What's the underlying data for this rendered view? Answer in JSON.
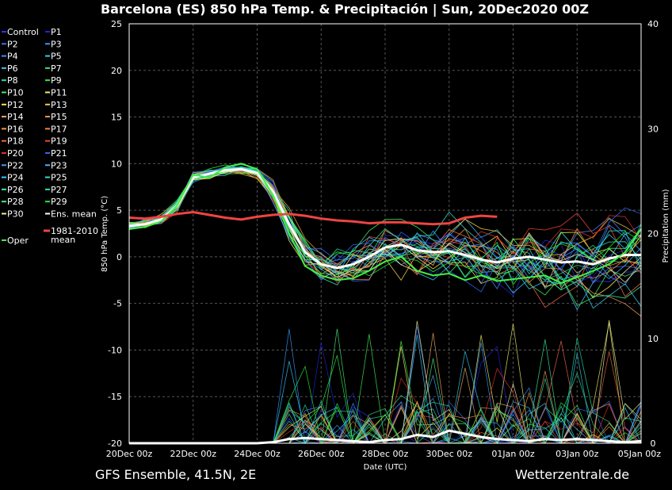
{
  "chart_data": {
    "type": "line",
    "title": "Barcelona  (ES)  850 hPa Temp. & Precipitación | Sun, 20Dec2020 00Z",
    "footer_left": "GFS Ensemble, 41.5N, 2E",
    "footer_right": "Wetterzentrale.de",
    "xlabel": "Date (UTC)",
    "ylabel_left": "850 hPa Temp. (°C)",
    "ylabel_right": "Precipitation (mm)",
    "x_ticks": [
      "20Dec 00z",
      "22Dec 00z",
      "24Dec 00z",
      "26Dec 00z",
      "28Dec 00z",
      "30Dec 00z",
      "01Jan 00z",
      "03Jan 00z",
      "05Jan 00z"
    ],
    "xlim_days": [
      0,
      16
    ],
    "ylim_left": [
      -20,
      25
    ],
    "yticks_left": [
      25,
      20,
      15,
      10,
      5,
      0,
      -5,
      -10,
      -15,
      -20
    ],
    "ylim_right": [
      0,
      40
    ],
    "yticks_right": [
      40,
      30,
      20,
      10,
      0
    ],
    "grid": true,
    "legend_placement": "left-outside",
    "legend": [
      {
        "name": "Control",
        "color": "#3333ff"
      },
      {
        "name": "P1",
        "color": "#2222dd"
      },
      {
        "name": "P2",
        "color": "#4466ff"
      },
      {
        "name": "P3",
        "color": "#3399ff"
      },
      {
        "name": "P4",
        "color": "#4488ff"
      },
      {
        "name": "P5",
        "color": "#33ccee"
      },
      {
        "name": "P6",
        "color": "#44bbee"
      },
      {
        "name": "P7",
        "color": "#33dd88"
      },
      {
        "name": "P8",
        "color": "#22dd99"
      },
      {
        "name": "P9",
        "color": "#33ee44"
      },
      {
        "name": "P10",
        "color": "#44ee55"
      },
      {
        "name": "P11",
        "color": "#eeee66"
      },
      {
        "name": "P12",
        "color": "#eeee44"
      },
      {
        "name": "P13",
        "color": "#eecc44"
      },
      {
        "name": "P14",
        "color": "#eeaa66"
      },
      {
        "name": "P15",
        "color": "#ee9955"
      },
      {
        "name": "P16",
        "color": "#ee9944"
      },
      {
        "name": "P17",
        "color": "#ee8844"
      },
      {
        "name": "P18",
        "color": "#ee6644"
      },
      {
        "name": "P19",
        "color": "#ee4433"
      },
      {
        "name": "P20",
        "color": "#dd3322"
      },
      {
        "name": "P21",
        "color": "#3366ee"
      },
      {
        "name": "P22",
        "color": "#4499ff"
      },
      {
        "name": "P23",
        "color": "#55aaff"
      },
      {
        "name": "P24",
        "color": "#33ccff"
      },
      {
        "name": "P25",
        "color": "#33ddcc"
      },
      {
        "name": "P26",
        "color": "#33ee99"
      },
      {
        "name": "P27",
        "color": "#33ddaa"
      },
      {
        "name": "P28",
        "color": "#44ee77"
      },
      {
        "name": "P29",
        "color": "#22ee33"
      },
      {
        "name": "P30",
        "color": "#eeee99"
      },
      {
        "name": "Ens. mean",
        "color": "#ffffff"
      },
      {
        "name": "Oper",
        "color": "#44ee44"
      },
      {
        "name": "1981-2010 mean",
        "color": "#ee4444"
      }
    ],
    "x_days": [
      0,
      0.5,
      1,
      1.5,
      2,
      2.5,
      3,
      3.5,
      4,
      4.5,
      5,
      5.5,
      6,
      6.5,
      7,
      7.5,
      8,
      8.5,
      9,
      9.5,
      10,
      10.5,
      11,
      11.5,
      12,
      12.5,
      13,
      13.5,
      14,
      14.5,
      15,
      15.5,
      16
    ],
    "series": [
      {
        "name": "Ens. mean",
        "role": "temp",
        "color": "#ffffff",
        "values": [
          3.3,
          3.5,
          4.0,
          5.5,
          8.5,
          8.9,
          9.3,
          9.4,
          9.0,
          7.0,
          3.5,
          0.5,
          -0.8,
          -1.2,
          -0.8,
          0.0,
          1.0,
          1.3,
          0.7,
          0.5,
          0.6,
          0.2,
          -0.3,
          -0.6,
          -0.2,
          0.0,
          -0.3,
          -0.6,
          -0.5,
          -0.8,
          -0.2,
          0.2,
          0.2
        ]
      },
      {
        "name": "Oper",
        "role": "temp",
        "color": "#44ee44",
        "values": [
          3.0,
          3.2,
          3.8,
          5.5,
          8.8,
          8.5,
          9.6,
          10.0,
          9.4,
          6.6,
          2.5,
          -1.0,
          -2.0,
          -2.5,
          -2.3,
          -1.5,
          -0.5,
          0.0,
          -1.5,
          -2.0,
          -1.8,
          -2.5,
          -2.0,
          -2.6,
          -2.4,
          -2.2,
          -2.0,
          -2.8,
          -2.2,
          -1.5,
          -0.8,
          0.5,
          3.0
        ]
      },
      {
        "name": "1981-2010 mean",
        "role": "temp",
        "color": "#ee4444",
        "values": [
          4.2,
          4.1,
          4.3,
          4.6,
          4.8,
          4.5,
          4.2,
          4.0,
          4.3,
          4.5,
          4.6,
          4.4,
          4.1,
          3.9,
          3.8,
          3.6,
          3.7,
          3.7,
          3.6,
          3.5,
          3.6,
          4.2,
          4.4,
          4.3,
          null,
          null,
          null,
          null,
          null,
          null,
          null,
          null,
          null
        ]
      },
      {
        "name": "Ens. mean",
        "role": "precip",
        "color": "#ffffff",
        "values": [
          0,
          0,
          0,
          0,
          0,
          0,
          0,
          0,
          0,
          0.1,
          0.4,
          0.5,
          0.4,
          0.3,
          0.2,
          0.1,
          0.3,
          0.4,
          0.8,
          0.6,
          1.2,
          0.9,
          0.6,
          0.4,
          0.3,
          0.2,
          0.4,
          0.3,
          0.4,
          0.3,
          0.2,
          0.1,
          0.2
        ]
      }
    ]
  }
}
